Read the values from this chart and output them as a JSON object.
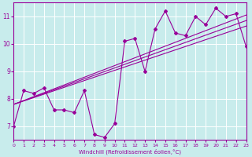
{
  "xlabel": "Windchill (Refroidissement éolien,°C)",
  "background_color": "#c8ecec",
  "line_color": "#990099",
  "xlim": [
    0,
    23
  ],
  "ylim": [
    6.5,
    11.5
  ],
  "yticks": [
    7,
    8,
    9,
    10,
    11
  ],
  "xticks": [
    0,
    1,
    2,
    3,
    4,
    5,
    6,
    7,
    8,
    9,
    10,
    11,
    12,
    13,
    14,
    15,
    16,
    17,
    18,
    19,
    20,
    21,
    22,
    23
  ],
  "series1_x": [
    0,
    1,
    2,
    3,
    4,
    5,
    6,
    7,
    8,
    9,
    10,
    11,
    12,
    13,
    14,
    15,
    16,
    17,
    18,
    19,
    20,
    21,
    22,
    23
  ],
  "series1_y": [
    7.0,
    8.3,
    8.2,
    8.4,
    7.6,
    7.6,
    7.5,
    8.3,
    6.7,
    6.6,
    7.1,
    10.1,
    10.2,
    9.0,
    10.55,
    11.2,
    10.4,
    10.3,
    11.0,
    10.7,
    11.3,
    11.0,
    11.1,
    9.9
  ],
  "line2_x": [
    0,
    23
  ],
  "line2_y": [
    7.8,
    10.65
  ],
  "line3_x": [
    0,
    23
  ],
  "line3_y": [
    7.8,
    11.05
  ],
  "line4_x": [
    0,
    23
  ],
  "line4_y": [
    7.8,
    10.85
  ]
}
